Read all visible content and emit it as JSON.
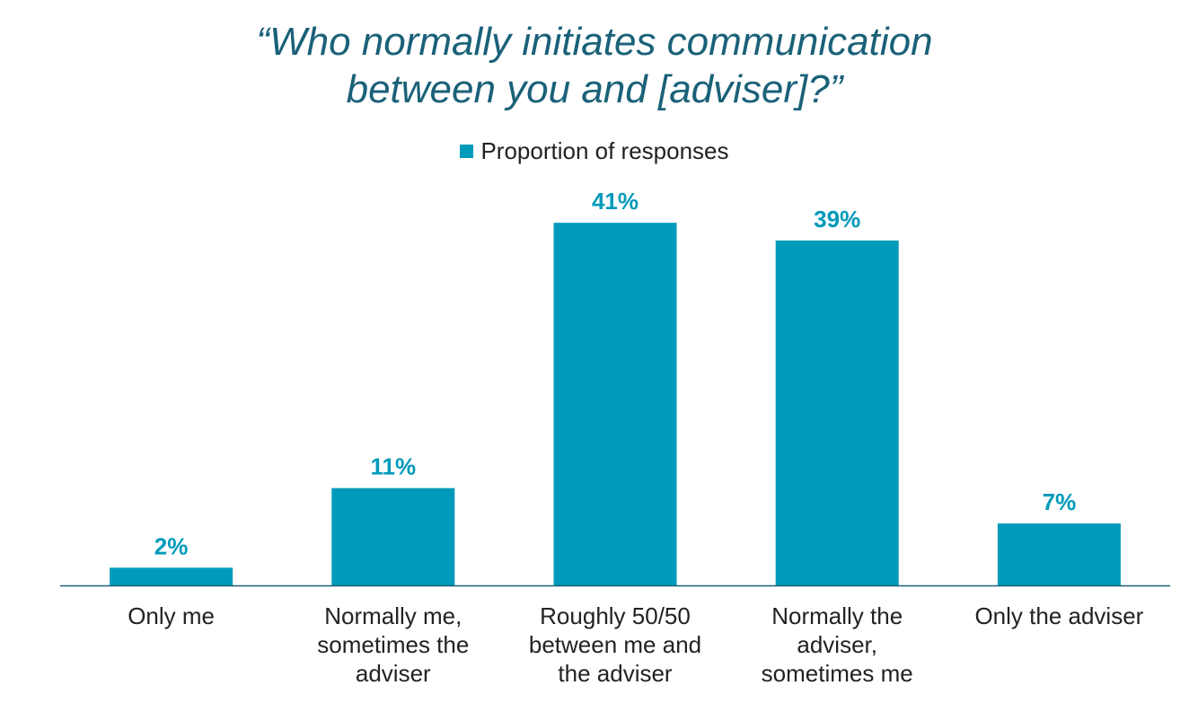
{
  "chart_data": {
    "type": "bar",
    "title_lines": [
      "“Who normally initiates communication",
      "between you and [adviser]?”"
    ],
    "categories": [
      [
        "Only me"
      ],
      [
        "Normally me,",
        "sometimes the",
        "adviser"
      ],
      [
        "Roughly 50/50",
        "between me and",
        "the adviser"
      ],
      [
        "Normally the",
        "adviser,",
        "sometimes me"
      ],
      [
        "Only the adviser"
      ]
    ],
    "series": [
      {
        "name": "Proportion of responses",
        "values": [
          2,
          11,
          41,
          39,
          7
        ],
        "labels": [
          "2%",
          "11%",
          "41%",
          "39%",
          "7%"
        ]
      }
    ],
    "ylim": [
      0,
      50
    ],
    "grid": false,
    "legend_position": "top"
  },
  "colors": {
    "bar": "#009aba",
    "title": "#1a6178",
    "value_label": "#009aba",
    "axis": "#1a6178",
    "text": "#222222"
  }
}
